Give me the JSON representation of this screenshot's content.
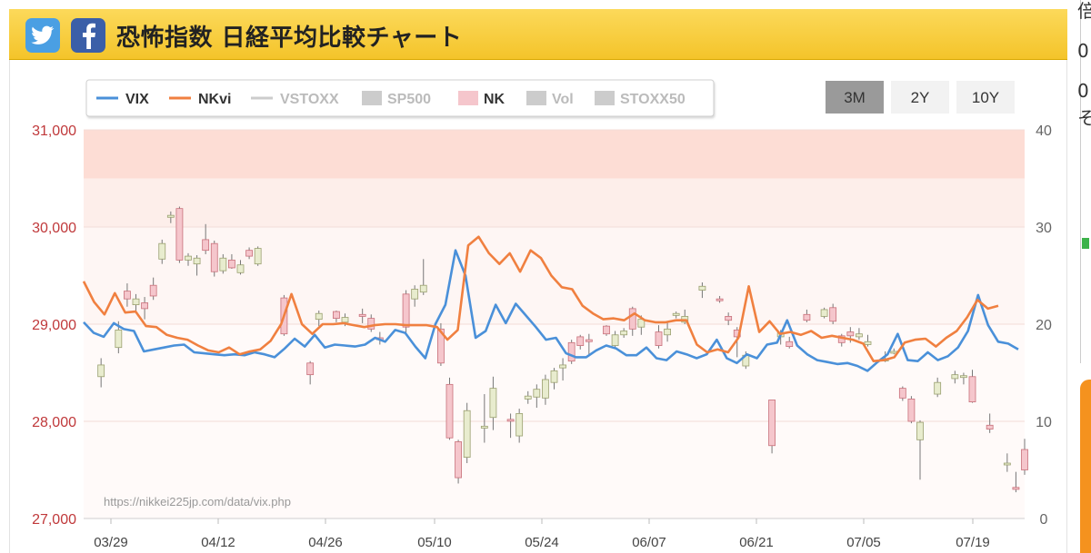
{
  "header": {
    "title": "恐怖指数 日経平均比較チャート",
    "twitter_icon": "twitter-icon",
    "facebook_icon": "facebook-icon"
  },
  "right_strip": {
    "chars": [
      "倍",
      "0",
      "0",
      "そ"
    ]
  },
  "range_buttons": [
    {
      "label": "3M",
      "active": true
    },
    {
      "label": "2Y",
      "active": false
    },
    {
      "label": "10Y",
      "active": false
    }
  ],
  "watermark": "https://nikkei225jp.com/data/vix.php",
  "colors": {
    "vix": "#4a90d9",
    "nkvi": "#f08040",
    "nk_up": "#e8ecce",
    "nk_down": "#f5c6cc",
    "bands": [
      "#fdddd5",
      "#fdeeea",
      "#fef6f4"
    ],
    "header": "#f8cd3a"
  },
  "chart_data": {
    "type": "line",
    "legend": [
      {
        "name": "VIX",
        "color": "#4a90d9",
        "enabled": true,
        "kind": "line"
      },
      {
        "name": "NKvi",
        "color": "#f08040",
        "enabled": true,
        "kind": "line"
      },
      {
        "name": "VSTOXX",
        "color": "#cccccc",
        "enabled": false,
        "kind": "line"
      },
      {
        "name": "SP500",
        "color": "#cccccc",
        "enabled": false,
        "kind": "box"
      },
      {
        "name": "NK",
        "color": "#f5c6cc",
        "enabled": true,
        "kind": "box"
      },
      {
        "name": "Vol",
        "color": "#cccccc",
        "enabled": false,
        "kind": "box"
      },
      {
        "name": "STOXX50",
        "color": "#cccccc",
        "enabled": false,
        "kind": "box"
      }
    ],
    "x_ticks": [
      "03/29",
      "04/12",
      "04/26",
      "05/10",
      "05/24",
      "06/07",
      "06/21",
      "07/05",
      "07/19"
    ],
    "x_tick_index": [
      3,
      13,
      23,
      33,
      43,
      53,
      63,
      73,
      83
    ],
    "y_left": {
      "ticks": [
        "27,000",
        "28,000",
        "29,000",
        "30,000",
        "31,000"
      ],
      "range": [
        27000,
        31000
      ]
    },
    "y_right": {
      "ticks": [
        "0",
        "10",
        "20",
        "30",
        "40"
      ],
      "range": [
        0,
        40
      ]
    },
    "bands_right": [
      [
        35,
        40
      ],
      [
        30,
        35
      ],
      [
        20,
        30
      ]
    ],
    "series": [
      {
        "name": "VIX",
        "values": [
          20.2,
          19.1,
          18.7,
          20.1,
          19.5,
          19.3,
          17.2,
          17.4,
          17.6,
          17.8,
          17.9,
          17.1,
          17.0,
          16.9,
          16.8,
          16.9,
          16.8,
          17.1,
          16.9,
          16.6,
          17.5,
          18.5,
          17.7,
          18.9,
          17.6,
          17.9,
          17.8,
          17.7,
          17.9,
          18.6,
          18.2,
          19.4,
          19.1,
          17.7,
          16.5,
          20.0,
          22.0,
          27.6,
          25.0,
          18.6,
          19.3,
          22.0,
          20.1,
          22.1,
          20.9,
          19.7,
          18.4,
          18.6,
          17.0,
          16.6,
          16.6,
          17.3,
          17.8,
          17.5,
          16.8,
          16.8,
          17.6,
          16.5,
          16.3,
          17.2,
          16.9,
          16.5,
          16.9,
          18.4,
          16.5,
          16.0,
          16.9,
          16.5,
          17.9,
          18.1,
          20.4,
          17.8,
          16.9,
          16.3,
          16.1,
          15.9,
          16.0,
          15.7,
          15.2,
          16.1,
          16.9,
          19.0,
          16.3,
          16.2,
          17.1,
          16.3,
          16.7,
          17.6,
          19.3,
          23.0,
          19.9,
          18.2,
          18.0,
          17.4
        ],
        "x_start": 0
      },
      {
        "name": "NKvi",
        "values": [
          24.4,
          22.3,
          21.0,
          23.2,
          21.2,
          21.3,
          19.8,
          19.7,
          18.9,
          18.6,
          18.4,
          17.8,
          17.3,
          17.1,
          17.6,
          16.9,
          17.2,
          17.4,
          18.3,
          20.0,
          23.1,
          20.0,
          19.0,
          20.0,
          20.0,
          20.1,
          19.9,
          19.7,
          19.9,
          20.0,
          20.0,
          19.9,
          19.9,
          19.9,
          19.7,
          18.4,
          19.4,
          28.1,
          29.0,
          27.3,
          26.2,
          27.3,
          25.4,
          27.6,
          26.8,
          25.0,
          23.8,
          23.6,
          21.9,
          21.1,
          20.5,
          20.6,
          20.4,
          21.1,
          20.4,
          20.2,
          20.2,
          20.4,
          20.4,
          17.9,
          17.1,
          17.4,
          17.1,
          18.6,
          23.9,
          19.2,
          20.3,
          19.0,
          19.2,
          18.9,
          19.3,
          18.6,
          18.8,
          18.6,
          18.4,
          18.0,
          16.2,
          16.3,
          16.6,
          18.1,
          18.4,
          18.5,
          17.7,
          18.6,
          19.3,
          20.7,
          22.5,
          21.6,
          21.9
        ],
        "x_start": 0
      }
    ],
    "nk_candles": [
      [
        2,
        28460,
        28580,
        28350,
        28650,
        "up"
      ],
      [
        4,
        28760,
        28940,
        28700,
        29030,
        "up"
      ],
      [
        5,
        29260,
        29340,
        29180,
        29420,
        "down"
      ],
      [
        6,
        29200,
        29260,
        29140,
        29310,
        "up"
      ],
      [
        7,
        29160,
        29220,
        29050,
        29280,
        "down"
      ],
      [
        8,
        29290,
        29400,
        29250,
        29480,
        "down"
      ],
      [
        9,
        29670,
        29830,
        29620,
        29870,
        "up"
      ],
      [
        10,
        30100,
        30120,
        30040,
        30160,
        "up"
      ],
      [
        11,
        30190,
        29660,
        29630,
        30210,
        "down"
      ],
      [
        12,
        29700,
        29660,
        29600,
        29730,
        "up"
      ],
      [
        13,
        29620,
        29680,
        29500,
        29710,
        "up"
      ],
      [
        14,
        29760,
        29870,
        29720,
        30030,
        "down"
      ],
      [
        15,
        29830,
        29540,
        29490,
        29860,
        "down"
      ],
      [
        16,
        29550,
        29680,
        29520,
        29720,
        "up"
      ],
      [
        17,
        29660,
        29580,
        29570,
        29720,
        "down"
      ],
      [
        18,
        29530,
        29610,
        29510,
        29660,
        "up"
      ],
      [
        19,
        29700,
        29760,
        29670,
        29790,
        "down"
      ],
      [
        20,
        29780,
        29620,
        29600,
        29800,
        "up"
      ],
      [
        23,
        29270,
        28900,
        28880,
        29300,
        "down"
      ],
      [
        26,
        28600,
        28480,
        28380,
        28620,
        "down"
      ],
      [
        27,
        29050,
        29110,
        28980,
        29140,
        "up"
      ],
      [
        29,
        29130,
        29060,
        29020,
        29140,
        "down"
      ],
      [
        30,
        29020,
        29070,
        28980,
        29110,
        "up"
      ],
      [
        32,
        29100,
        29080,
        29010,
        29160,
        "down"
      ],
      [
        33,
        29060,
        28950,
        28920,
        29100,
        "down"
      ],
      [
        34,
        28840,
        28860,
        28790,
        28920,
        "down"
      ],
      [
        37,
        29310,
        28970,
        28910,
        29350,
        "down"
      ],
      [
        38,
        29260,
        29360,
        29180,
        29400,
        "up"
      ],
      [
        39,
        29330,
        29400,
        29300,
        29670,
        "up"
      ],
      [
        41,
        28950,
        28600,
        28570,
        29010,
        "down"
      ],
      [
        42,
        28380,
        27830,
        27810,
        28450,
        "down"
      ],
      [
        43,
        27790,
        27420,
        27360,
        27810,
        "down"
      ],
      [
        44,
        27630,
        28110,
        27570,
        28190,
        "up"
      ],
      [
        46,
        27930,
        27950,
        27780,
        28280,
        "up"
      ],
      [
        47,
        28040,
        28340,
        27910,
        28460,
        "up"
      ],
      [
        49,
        28020,
        28010,
        27830,
        28080,
        "down"
      ],
      [
        50,
        27850,
        28080,
        27780,
        28130,
        "up"
      ],
      [
        51,
        28260,
        28230,
        28180,
        28310,
        "up"
      ],
      [
        52,
        28330,
        28250,
        28140,
        28380,
        "up"
      ],
      [
        53,
        28240,
        28430,
        28170,
        28480,
        "up"
      ],
      [
        54,
        28400,
        28520,
        28330,
        28550,
        "up"
      ],
      [
        55,
        28550,
        28580,
        28420,
        28650,
        "up"
      ],
      [
        56,
        28810,
        28620,
        28590,
        28840,
        "down"
      ],
      [
        57,
        28870,
        28780,
        28740,
        28890,
        "down"
      ],
      [
        58,
        28840,
        28820,
        28690,
        28900,
        "down"
      ],
      [
        60,
        28980,
        28900,
        28880,
        28990,
        "down"
      ],
      [
        61,
        28780,
        28890,
        28760,
        28930,
        "up"
      ],
      [
        62,
        28930,
        28890,
        28860,
        28960,
        "up"
      ],
      [
        63,
        28950,
        29160,
        28880,
        29180,
        "down"
      ],
      [
        64,
        28970,
        29050,
        28890,
        29090,
        "up"
      ],
      [
        66,
        28920,
        28780,
        28750,
        28990,
        "down"
      ],
      [
        67,
        28890,
        28950,
        28820,
        29020,
        "up"
      ],
      [
        68,
        29090,
        29110,
        29060,
        29130,
        "up"
      ],
      [
        69,
        29020,
        29080,
        29000,
        29150,
        "up"
      ],
      [
        71,
        29350,
        29390,
        29270,
        29430,
        "up"
      ],
      [
        73,
        29260,
        29250,
        29220,
        29290,
        "down"
      ],
      [
        74,
        29080,
        29040,
        28990,
        29120,
        "down"
      ],
      [
        75,
        28940,
        28870,
        28660,
        28970,
        "down"
      ],
      [
        76,
        28680,
        28570,
        28540,
        28720,
        "up"
      ],
      [
        79,
        28220,
        27750,
        27670,
        28220,
        "down"
      ],
      [
        80,
        28910,
        28870,
        28790,
        28940,
        "up"
      ],
      [
        81,
        28820,
        28770,
        28750,
        28870,
        "down"
      ],
      [
        83,
        29040,
        29100,
        29020,
        29150,
        "down"
      ],
      [
        85,
        29080,
        29150,
        29060,
        29170,
        "up"
      ],
      [
        86,
        29170,
        29030,
        29000,
        29210,
        "down"
      ],
      [
        87,
        28880,
        28810,
        28770,
        28900,
        "down"
      ],
      [
        88,
        28920,
        28880,
        28810,
        28970,
        "down"
      ],
      [
        89,
        28900,
        28870,
        28840,
        28960,
        "up"
      ],
      [
        90,
        28820,
        28790,
        28770,
        28890,
        "up"
      ],
      [
        92,
        28640,
        28640,
        28610,
        28720,
        "up"
      ],
      [
        93,
        28710,
        28720,
        28690,
        28750,
        "up"
      ],
      [
        94,
        28340,
        28240,
        28210,
        28360,
        "down"
      ],
      [
        95,
        28230,
        28000,
        27980,
        28260,
        "down"
      ],
      [
        96,
        27810,
        27990,
        27400,
        28010,
        "up"
      ],
      [
        98,
        28280,
        28400,
        28250,
        28450,
        "up"
      ],
      [
        100,
        28440,
        28480,
        28390,
        28520,
        "up"
      ],
      [
        101,
        28470,
        28460,
        28380,
        28500,
        "up"
      ],
      [
        102,
        28460,
        28200,
        28190,
        28530,
        "down"
      ],
      [
        104,
        27960,
        27920,
        27880,
        28080,
        "down"
      ],
      [
        106,
        27560,
        27570,
        27480,
        27670,
        "up"
      ],
      [
        107,
        27320,
        27300,
        27270,
        27480,
        "down"
      ],
      [
        108,
        27500,
        27710,
        27450,
        27820,
        "down"
      ]
    ]
  }
}
